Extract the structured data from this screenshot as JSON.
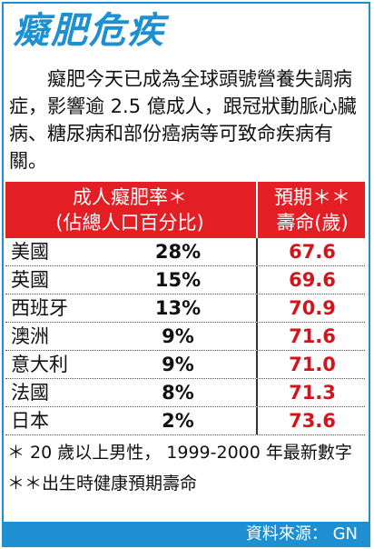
{
  "title": "癡肥危疾",
  "intro": "癡肥今天已成為全球頭號營養失調病症，影響逾 2.5 億成人，跟冠狀動脈心臟病、糖尿病和部份癌病等可致命疾病有關。",
  "table": {
    "header_rate_line1": "成人癡肥率＊",
    "header_rate_line2": "(佔總人口百分比)",
    "header_life_line1": "預期＊＊",
    "header_life_line2": "壽命(歲)",
    "rows": [
      {
        "country": "美國",
        "rate": "28%",
        "life": "67.6"
      },
      {
        "country": "英國",
        "rate": "15%",
        "life": "69.6"
      },
      {
        "country": "西班牙",
        "rate": "13%",
        "life": "70.9"
      },
      {
        "country": "澳洲",
        "rate": "9%",
        "life": "71.6"
      },
      {
        "country": "意大利",
        "rate": "9%",
        "life": "71.0"
      },
      {
        "country": "法國",
        "rate": "8%",
        "life": "71.3"
      },
      {
        "country": "日本",
        "rate": "2%",
        "life": "73.6"
      }
    ]
  },
  "notes": {
    "note1": "＊ 20 歲以上男性， 1999-2000 年最新數字",
    "note2": "＊＊出生時健康預期壽命"
  },
  "source": "資料來源： GN",
  "colors": {
    "accent_blue": "#1e8fd1",
    "header_red": "#e31e24",
    "value_red": "#d4141c"
  }
}
